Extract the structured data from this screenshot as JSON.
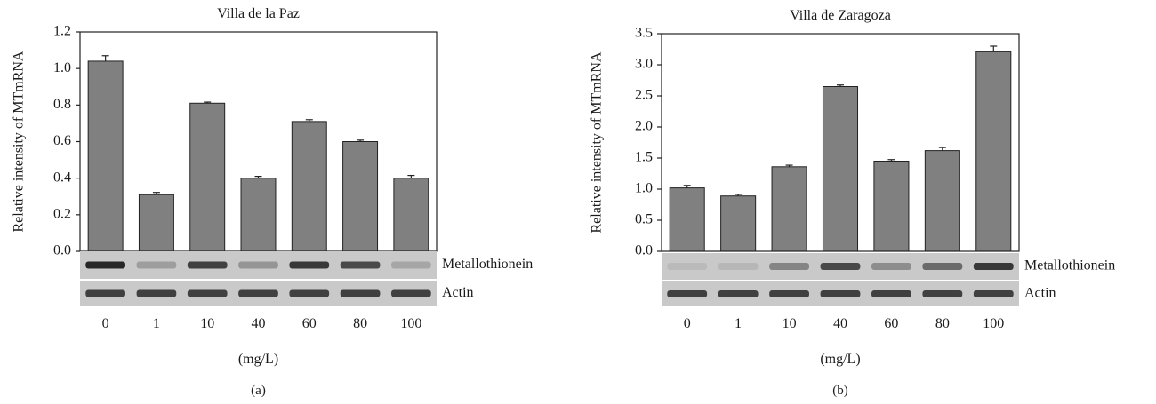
{
  "chart_data": [
    {
      "type": "bar",
      "title": "Villa de la Paz",
      "ylabel": "Relative intensity of MTmRNA",
      "xlabel": "(mg/L)",
      "panel_label": "(a)",
      "categories": [
        "0",
        "1",
        "10",
        "40",
        "60",
        "80",
        "100"
      ],
      "series": [
        {
          "values": [
            1.04,
            0.31,
            0.81,
            0.4,
            0.71,
            0.6,
            0.4
          ],
          "errors": [
            0.03,
            0.012,
            0.006,
            0.01,
            0.01,
            0.008,
            0.015
          ]
        }
      ],
      "ylim": [
        0,
        1.2
      ],
      "yticks": [
        "0.0",
        "0.2",
        "0.4",
        "0.6",
        "0.8",
        "1.0",
        "1.2"
      ],
      "gel_labels": [
        "Metallothionein",
        "Actin"
      ],
      "metallothionein_band_strength": [
        0.95,
        0.25,
        0.8,
        0.3,
        0.85,
        0.75,
        0.2
      ],
      "actin_band_strength": [
        0.8,
        0.8,
        0.8,
        0.8,
        0.8,
        0.8,
        0.8
      ],
      "bar_color": "#808080",
      "grid": false,
      "legend": "none"
    },
    {
      "type": "bar",
      "title": "Villa de Zaragoza",
      "ylabel": "Relative intensity of MTmRNA",
      "xlabel": "(mg/L)",
      "panel_label": "(b)",
      "categories": [
        "0",
        "1",
        "10",
        "40",
        "60",
        "80",
        "100"
      ],
      "series": [
        {
          "values": [
            1.02,
            0.89,
            1.36,
            2.65,
            1.45,
            1.62,
            3.21
          ],
          "errors": [
            0.04,
            0.025,
            0.025,
            0.025,
            0.025,
            0.05,
            0.09
          ]
        }
      ],
      "ylim": [
        0,
        3.5
      ],
      "yticks": [
        "0.0",
        "0.5",
        "1.0",
        "1.5",
        "2.0",
        "2.5",
        "3.0",
        "3.5"
      ],
      "gel_labels": [
        "Metallothionein",
        "Actin"
      ],
      "metallothionein_band_strength": [
        0.08,
        0.1,
        0.4,
        0.75,
        0.35,
        0.55,
        0.85
      ],
      "actin_band_strength": [
        0.8,
        0.8,
        0.8,
        0.8,
        0.8,
        0.8,
        0.8
      ],
      "bar_color": "#808080",
      "grid": false,
      "legend": "none"
    }
  ]
}
